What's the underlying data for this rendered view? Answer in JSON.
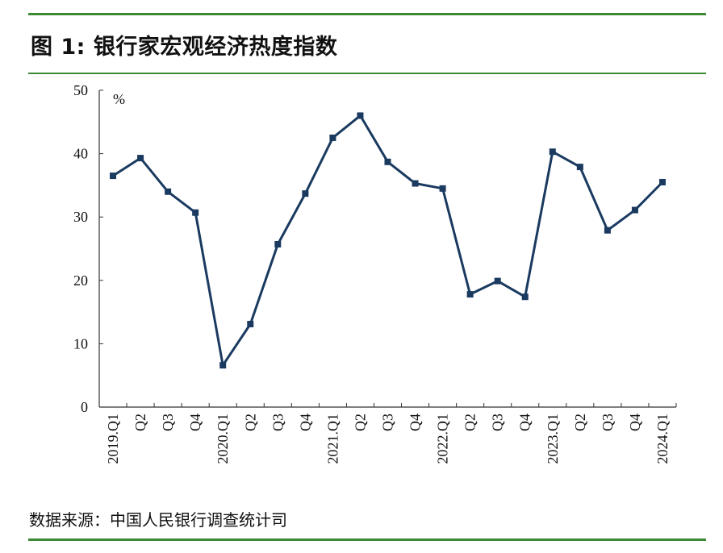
{
  "figure": {
    "title": "图 1:  银行家宏观经济热度指数",
    "source": "数据来源：中国人民银行调查统计司"
  },
  "chart_data": {
    "type": "line",
    "title": "",
    "xlabel": "",
    "ylabel": "",
    "unit": "%",
    "ylim": [
      0,
      50
    ],
    "yticks": [
      0,
      10,
      20,
      30,
      40,
      50
    ],
    "grid": false,
    "categories": [
      "2019.Q1",
      "Q2",
      "Q3",
      "Q4",
      "2020.Q1",
      "Q2",
      "Q3",
      "Q4",
      "2021.Q1",
      "Q2",
      "Q3",
      "Q4",
      "2022.Q1",
      "Q2",
      "Q3",
      "Q4",
      "2023.Q1",
      "Q2",
      "Q3",
      "Q4",
      "2024.Q1"
    ],
    "series": [
      {
        "values": [
          36.5,
          39.3,
          34.0,
          30.7,
          6.6,
          13.1,
          25.7,
          33.7,
          42.5,
          46.0,
          38.7,
          35.3,
          34.5,
          17.8,
          19.9,
          17.4,
          40.3,
          37.9,
          27.9,
          31.1,
          35.5
        ],
        "color": "#1a3a60"
      }
    ]
  }
}
